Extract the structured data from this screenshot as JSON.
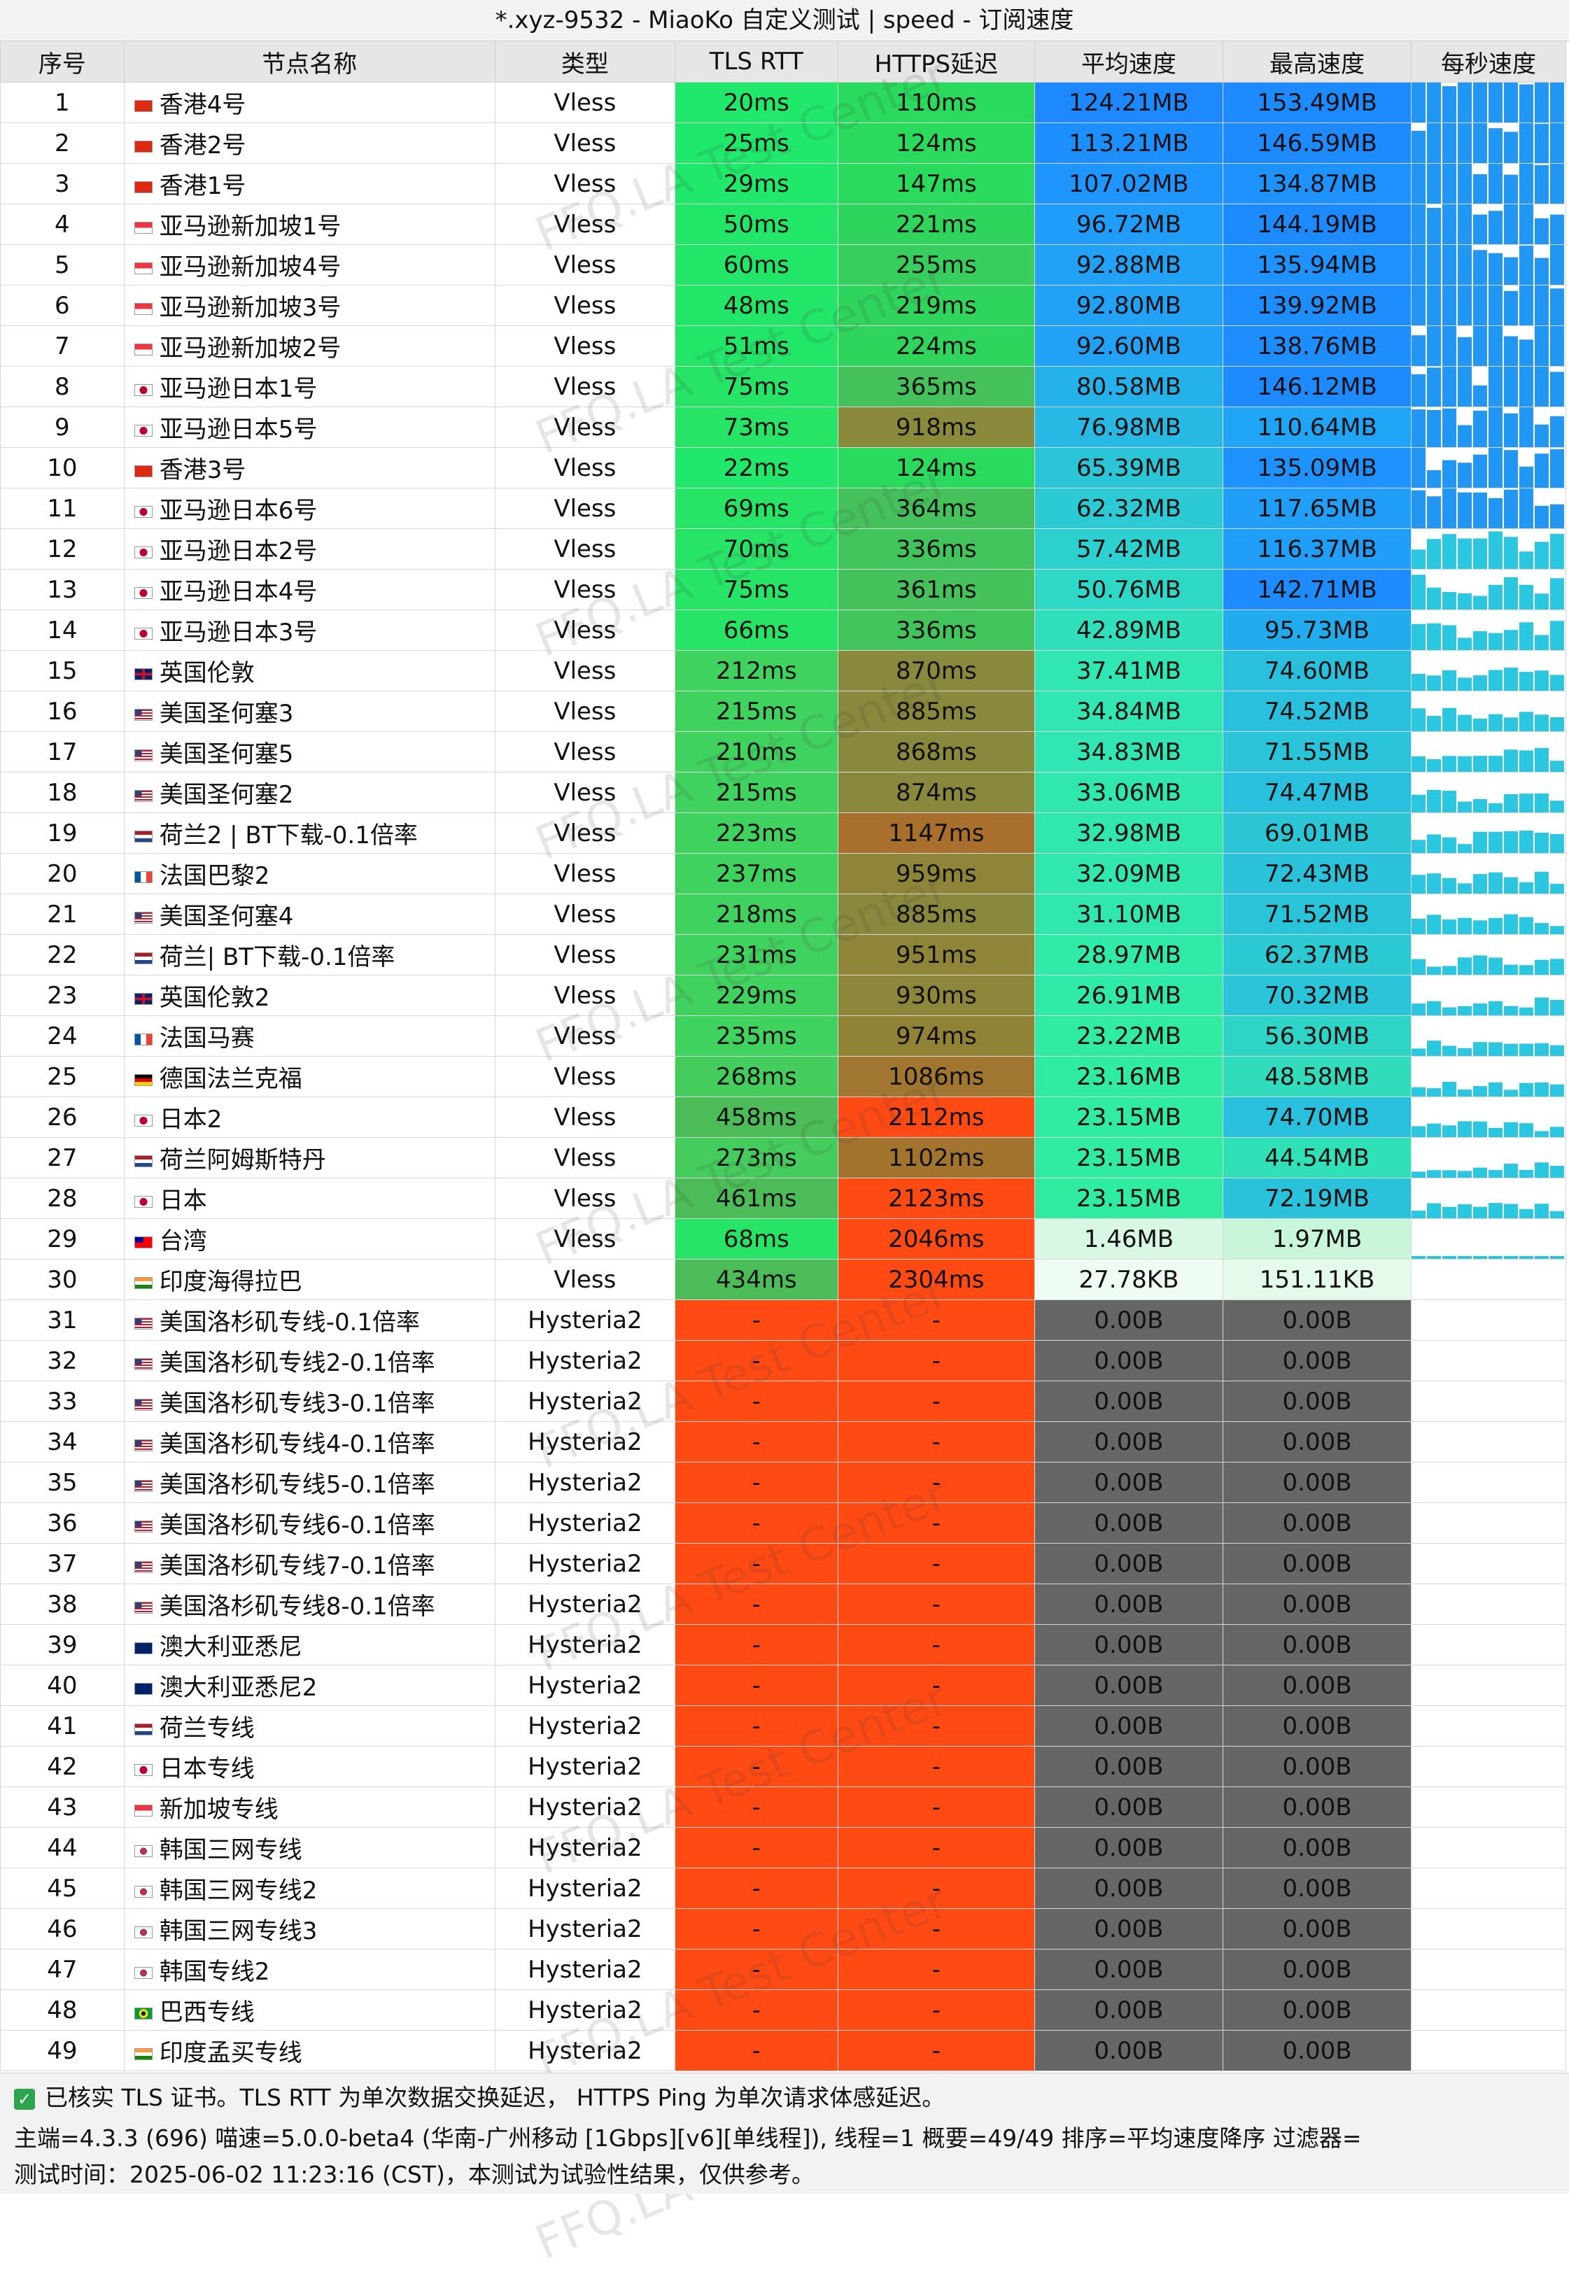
{
  "window": {
    "title": "*.xyz-9532 - MiaoKo 自定义测试 | speed - 订阅速度"
  },
  "colors": {
    "green": "#22e85a",
    "mid_green": "#4cc45c",
    "olive": "#8a8a3a",
    "orange_brown": "#b2641f",
    "red_orange": "#ff4a12",
    "blue": "#1e8fff",
    "teal": "#2ddcd0",
    "pale": "#c8f7dc",
    "gray": "#666666"
  },
  "columns": [
    "序号",
    "节点名称",
    "类型",
    "TLS RTT",
    "HTTPS延迟",
    "平均速度",
    "最高速度",
    "每秒速度"
  ],
  "rows": [
    {
      "idx": "1",
      "flag": "hk",
      "name": "香港4号",
      "type": "Vless",
      "tls": "20ms",
      "https": "110ms",
      "avg": "124.21MB",
      "max": "153.49MB",
      "tc": "#1fe86a",
      "hc": "#2ada5c",
      "ac": "#1e88ff",
      "mc": "#1e8aff"
    },
    {
      "idx": "2",
      "flag": "hk",
      "name": "香港2号",
      "type": "Vless",
      "tls": "25ms",
      "https": "124ms",
      "avg": "113.21MB",
      "max": "146.59MB",
      "tc": "#1fe86a",
      "hc": "#2ada5c",
      "ac": "#1e8fff",
      "mc": "#1e8aff"
    },
    {
      "idx": "3",
      "flag": "hk",
      "name": "香港1号",
      "type": "Vless",
      "tls": "29ms",
      "https": "147ms",
      "avg": "107.02MB",
      "max": "134.87MB",
      "tc": "#1fe86a",
      "hc": "#2ada5c",
      "ac": "#1f95ff",
      "mc": "#1e92ff"
    },
    {
      "idx": "4",
      "flag": "sg",
      "name": "亚马逊新加坡1号",
      "type": "Vless",
      "tls": "50ms",
      "https": "221ms",
      "avg": "96.72MB",
      "max": "144.19MB",
      "tc": "#22e668",
      "hc": "#2ed45c",
      "ac": "#209cfb",
      "mc": "#1e8aff"
    },
    {
      "idx": "5",
      "flag": "sg",
      "name": "亚马逊新加坡4号",
      "type": "Vless",
      "tls": "60ms",
      "https": "255ms",
      "avg": "92.88MB",
      "max": "135.94MB",
      "tc": "#22e668",
      "hc": "#36ce5c",
      "ac": "#21a2f6",
      "mc": "#1e92ff"
    },
    {
      "idx": "6",
      "flag": "sg",
      "name": "亚马逊新加坡3号",
      "type": "Vless",
      "tls": "48ms",
      "https": "219ms",
      "avg": "92.80MB",
      "max": "139.92MB",
      "tc": "#22e668",
      "hc": "#2ed45c",
      "ac": "#21a2f6",
      "mc": "#1e8eff"
    },
    {
      "idx": "7",
      "flag": "sg",
      "name": "亚马逊新加坡2号",
      "type": "Vless",
      "tls": "51ms",
      "https": "224ms",
      "avg": "92.60MB",
      "max": "138.76MB",
      "tc": "#22e668",
      "hc": "#2ed45c",
      "ac": "#21a2f6",
      "mc": "#1e8eff"
    },
    {
      "idx": "8",
      "flag": "jp",
      "name": "亚马逊日本1号",
      "type": "Vless",
      "tls": "75ms",
      "https": "365ms",
      "avg": "80.58MB",
      "max": "146.12MB",
      "tc": "#26e466",
      "hc": "#45c15c",
      "ac": "#25b2ea",
      "mc": "#1e8aff"
    },
    {
      "idx": "9",
      "flag": "jp",
      "name": "亚马逊日本5号",
      "type": "Vless",
      "tls": "73ms",
      "https": "918ms",
      "avg": "76.98MB",
      "max": "110.64MB",
      "tc": "#26e466",
      "hc": "#8a8a3c",
      "ac": "#27b8e4",
      "mc": "#20a4f6"
    },
    {
      "idx": "10",
      "flag": "hk",
      "name": "香港3号",
      "type": "Vless",
      "tls": "22ms",
      "https": "124ms",
      "avg": "65.39MB",
      "max": "135.09MB",
      "tc": "#1fe86a",
      "hc": "#2ada5c",
      "ac": "#2ac6d8",
      "mc": "#1e92ff"
    },
    {
      "idx": "11",
      "flag": "jp",
      "name": "亚马逊日本6号",
      "type": "Vless",
      "tls": "69ms",
      "https": "364ms",
      "avg": "62.32MB",
      "max": "117.65MB",
      "tc": "#26e466",
      "hc": "#45c15c",
      "ac": "#2bcad4",
      "mc": "#209ef8"
    },
    {
      "idx": "12",
      "flag": "jp",
      "name": "亚马逊日本2号",
      "type": "Vless",
      "tls": "70ms",
      "https": "336ms",
      "avg": "57.42MB",
      "max": "116.37MB",
      "tc": "#26e466",
      "hc": "#42c45c",
      "ac": "#2cd0ce",
      "mc": "#209ef8"
    },
    {
      "idx": "13",
      "flag": "jp",
      "name": "亚马逊日本4号",
      "type": "Vless",
      "tls": "75ms",
      "https": "361ms",
      "avg": "50.76MB",
      "max": "142.71MB",
      "tc": "#26e466",
      "hc": "#45c15c",
      "ac": "#2ed8c6",
      "mc": "#1e8cff"
    },
    {
      "idx": "14",
      "flag": "jp",
      "name": "亚马逊日本3号",
      "type": "Vless",
      "tls": "66ms",
      "https": "336ms",
      "avg": "42.89MB",
      "max": "95.73MB",
      "tc": "#26e466",
      "hc": "#42c45c",
      "ac": "#30e0bc",
      "mc": "#22acee"
    },
    {
      "idx": "15",
      "flag": "gb",
      "name": "英国伦敦",
      "type": "Vless",
      "tls": "212ms",
      "https": "870ms",
      "avg": "37.41MB",
      "max": "74.60MB",
      "tc": "#40d25e",
      "hc": "#88893c",
      "ac": "#30e6b2",
      "mc": "#28c0dc"
    },
    {
      "idx": "16",
      "flag": "us",
      "name": "美国圣何塞3",
      "type": "Vless",
      "tls": "215ms",
      "https": "885ms",
      "avg": "34.84MB",
      "max": "74.52MB",
      "tc": "#40d25e",
      "hc": "#88893c",
      "ac": "#30e6b2",
      "mc": "#28c0dc"
    },
    {
      "idx": "17",
      "flag": "us",
      "name": "美国圣何塞5",
      "type": "Vless",
      "tls": "210ms",
      "https": "868ms",
      "avg": "34.83MB",
      "max": "71.55MB",
      "tc": "#40d25e",
      "hc": "#88893c",
      "ac": "#30e6b2",
      "mc": "#2ac4d8"
    },
    {
      "idx": "18",
      "flag": "us",
      "name": "美国圣何塞2",
      "type": "Vless",
      "tls": "215ms",
      "https": "874ms",
      "avg": "33.06MB",
      "max": "74.47MB",
      "tc": "#40d25e",
      "hc": "#88893c",
      "ac": "#30e8ae",
      "mc": "#28c0dc"
    },
    {
      "idx": "19",
      "flag": "nl",
      "name": "荷兰2 | BT下载-0.1倍率",
      "type": "Vless",
      "tls": "223ms",
      "https": "1147ms",
      "avg": "32.98MB",
      "max": "69.01MB",
      "tc": "#40d25e",
      "hc": "#a8702c",
      "ac": "#30e8ae",
      "mc": "#2ac6d6"
    },
    {
      "idx": "20",
      "flag": "fr",
      "name": "法国巴黎2",
      "type": "Vless",
      "tls": "237ms",
      "https": "959ms",
      "avg": "32.09MB",
      "max": "72.43MB",
      "tc": "#40d25e",
      "hc": "#8e8538",
      "ac": "#30e8ae",
      "mc": "#2ac2da"
    },
    {
      "idx": "21",
      "flag": "us",
      "name": "美国圣何塞4",
      "type": "Vless",
      "tls": "218ms",
      "https": "885ms",
      "avg": "31.10MB",
      "max": "71.52MB",
      "tc": "#40d25e",
      "hc": "#88893c",
      "ac": "#30e8ae",
      "mc": "#2ac4d8"
    },
    {
      "idx": "22",
      "flag": "nl",
      "name": "荷兰| BT下载-0.1倍率",
      "type": "Vless",
      "tls": "231ms",
      "https": "951ms",
      "avg": "28.97MB",
      "max": "62.37MB",
      "tc": "#40d25e",
      "hc": "#8e8538",
      "ac": "#30eaa8",
      "mc": "#2bcad2"
    },
    {
      "idx": "23",
      "flag": "gb",
      "name": "英国伦敦2",
      "type": "Vless",
      "tls": "229ms",
      "https": "930ms",
      "avg": "26.91MB",
      "max": "70.32MB",
      "tc": "#40d25e",
      "hc": "#8c873a",
      "ac": "#30eaa8",
      "mc": "#2ac4d8"
    },
    {
      "idx": "24",
      "flag": "fr",
      "name": "法国马赛",
      "type": "Vless",
      "tls": "235ms",
      "https": "974ms",
      "avg": "23.22MB",
      "max": "56.30MB",
      "tc": "#40d25e",
      "hc": "#908336",
      "ac": "#30eca2",
      "mc": "#2ed4c6"
    },
    {
      "idx": "25",
      "flag": "de",
      "name": "德国法兰克福",
      "type": "Vless",
      "tls": "268ms",
      "https": "1086ms",
      "avg": "23.16MB",
      "max": "48.58MB",
      "tc": "#44cc5c",
      "hc": "#a07630",
      "ac": "#30eca2",
      "mc": "#30dcbc"
    },
    {
      "idx": "26",
      "flag": "jp",
      "name": "日本2",
      "type": "Vless",
      "tls": "458ms",
      "https": "2112ms",
      "avg": "23.15MB",
      "max": "74.70MB",
      "tc": "#4cbc58",
      "hc": "#ff4a14",
      "ac": "#30eca2",
      "mc": "#28c0dc"
    },
    {
      "idx": "27",
      "flag": "nl",
      "name": "荷兰阿姆斯特丹",
      "type": "Vless",
      "tls": "273ms",
      "https": "1102ms",
      "avg": "23.15MB",
      "max": "44.54MB",
      "tc": "#44cc5c",
      "hc": "#a2742e",
      "ac": "#30eca2",
      "mc": "#30e0b6"
    },
    {
      "idx": "28",
      "flag": "jp",
      "name": "日本",
      "type": "Vless",
      "tls": "461ms",
      "https": "2123ms",
      "avg": "23.15MB",
      "max": "72.19MB",
      "tc": "#4cbc58",
      "hc": "#ff4a14",
      "ac": "#30eca2",
      "mc": "#2ac2da"
    },
    {
      "idx": "29",
      "flag": "tw",
      "name": "台湾",
      "type": "Vless",
      "tls": "68ms",
      "https": "2046ms",
      "avg": "1.46MB",
      "max": "1.97MB",
      "tc": "#26e466",
      "hc": "#ff4a14",
      "ac": "#d8f8e4",
      "mc": "#c8f6da"
    },
    {
      "idx": "30",
      "flag": "in",
      "name": "印度海得拉巴",
      "type": "Vless",
      "tls": "434ms",
      "https": "2304ms",
      "avg": "27.78KB",
      "max": "151.11KB",
      "tc": "#4cbc58",
      "hc": "#ff4a14",
      "ac": "#eefcf2",
      "mc": "#e4faea"
    },
    {
      "idx": "31",
      "flag": "us",
      "name": "美国洛杉矶专线-0.1倍率",
      "type": "Hysteria2",
      "tls": "-",
      "https": "-",
      "avg": "0.00B",
      "max": "0.00B",
      "tc": "#ff4a14",
      "hc": "#ff4a14",
      "ac": "#666666",
      "mc": "#666666"
    },
    {
      "idx": "32",
      "flag": "us",
      "name": "美国洛杉矶专线2-0.1倍率",
      "type": "Hysteria2",
      "tls": "-",
      "https": "-",
      "avg": "0.00B",
      "max": "0.00B",
      "tc": "#ff4a14",
      "hc": "#ff4a14",
      "ac": "#666666",
      "mc": "#666666"
    },
    {
      "idx": "33",
      "flag": "us",
      "name": "美国洛杉矶专线3-0.1倍率",
      "type": "Hysteria2",
      "tls": "-",
      "https": "-",
      "avg": "0.00B",
      "max": "0.00B",
      "tc": "#ff4a14",
      "hc": "#ff4a14",
      "ac": "#666666",
      "mc": "#666666"
    },
    {
      "idx": "34",
      "flag": "us",
      "name": "美国洛杉矶专线4-0.1倍率",
      "type": "Hysteria2",
      "tls": "-",
      "https": "-",
      "avg": "0.00B",
      "max": "0.00B",
      "tc": "#ff4a14",
      "hc": "#ff4a14",
      "ac": "#666666",
      "mc": "#666666"
    },
    {
      "idx": "35",
      "flag": "us",
      "name": "美国洛杉矶专线5-0.1倍率",
      "type": "Hysteria2",
      "tls": "-",
      "https": "-",
      "avg": "0.00B",
      "max": "0.00B",
      "tc": "#ff4a14",
      "hc": "#ff4a14",
      "ac": "#666666",
      "mc": "#666666"
    },
    {
      "idx": "36",
      "flag": "us",
      "name": "美国洛杉矶专线6-0.1倍率",
      "type": "Hysteria2",
      "tls": "-",
      "https": "-",
      "avg": "0.00B",
      "max": "0.00B",
      "tc": "#ff4a14",
      "hc": "#ff4a14",
      "ac": "#666666",
      "mc": "#666666"
    },
    {
      "idx": "37",
      "flag": "us",
      "name": "美国洛杉矶专线7-0.1倍率",
      "type": "Hysteria2",
      "tls": "-",
      "https": "-",
      "avg": "0.00B",
      "max": "0.00B",
      "tc": "#ff4a14",
      "hc": "#ff4a14",
      "ac": "#666666",
      "mc": "#666666"
    },
    {
      "idx": "38",
      "flag": "us",
      "name": "美国洛杉矶专线8-0.1倍率",
      "type": "Hysteria2",
      "tls": "-",
      "https": "-",
      "avg": "0.00B",
      "max": "0.00B",
      "tc": "#ff4a14",
      "hc": "#ff4a14",
      "ac": "#666666",
      "mc": "#666666"
    },
    {
      "idx": "39",
      "flag": "au",
      "name": "澳大利亚悉尼",
      "type": "Hysteria2",
      "tls": "-",
      "https": "-",
      "avg": "0.00B",
      "max": "0.00B",
      "tc": "#ff4a14",
      "hc": "#ff4a14",
      "ac": "#666666",
      "mc": "#666666"
    },
    {
      "idx": "40",
      "flag": "au",
      "name": "澳大利亚悉尼2",
      "type": "Hysteria2",
      "tls": "-",
      "https": "-",
      "avg": "0.00B",
      "max": "0.00B",
      "tc": "#ff4a14",
      "hc": "#ff4a14",
      "ac": "#666666",
      "mc": "#666666"
    },
    {
      "idx": "41",
      "flag": "nl",
      "name": "荷兰专线",
      "type": "Hysteria2",
      "tls": "-",
      "https": "-",
      "avg": "0.00B",
      "max": "0.00B",
      "tc": "#ff4a14",
      "hc": "#ff4a14",
      "ac": "#666666",
      "mc": "#666666"
    },
    {
      "idx": "42",
      "flag": "jp",
      "name": "日本专线",
      "type": "Hysteria2",
      "tls": "-",
      "https": "-",
      "avg": "0.00B",
      "max": "0.00B",
      "tc": "#ff4a14",
      "hc": "#ff4a14",
      "ac": "#666666",
      "mc": "#666666"
    },
    {
      "idx": "43",
      "flag": "sg",
      "name": "新加坡专线",
      "type": "Hysteria2",
      "tls": "-",
      "https": "-",
      "avg": "0.00B",
      "max": "0.00B",
      "tc": "#ff4a14",
      "hc": "#ff4a14",
      "ac": "#666666",
      "mc": "#666666"
    },
    {
      "idx": "44",
      "flag": "kr",
      "name": "韩国三网专线",
      "type": "Hysteria2",
      "tls": "-",
      "https": "-",
      "avg": "0.00B",
      "max": "0.00B",
      "tc": "#ff4a14",
      "hc": "#ff4a14",
      "ac": "#666666",
      "mc": "#666666"
    },
    {
      "idx": "45",
      "flag": "kr",
      "name": "韩国三网专线2",
      "type": "Hysteria2",
      "tls": "-",
      "https": "-",
      "avg": "0.00B",
      "max": "0.00B",
      "tc": "#ff4a14",
      "hc": "#ff4a14",
      "ac": "#666666",
      "mc": "#666666"
    },
    {
      "idx": "46",
      "flag": "kr",
      "name": "韩国三网专线3",
      "type": "Hysteria2",
      "tls": "-",
      "https": "-",
      "avg": "0.00B",
      "max": "0.00B",
      "tc": "#ff4a14",
      "hc": "#ff4a14",
      "ac": "#666666",
      "mc": "#666666"
    },
    {
      "idx": "47",
      "flag": "kr",
      "name": "韩国专线2",
      "type": "Hysteria2",
      "tls": "-",
      "https": "-",
      "avg": "0.00B",
      "max": "0.00B",
      "tc": "#ff4a14",
      "hc": "#ff4a14",
      "ac": "#666666",
      "mc": "#666666"
    },
    {
      "idx": "48",
      "flag": "br",
      "name": "巴西专线",
      "type": "Hysteria2",
      "tls": "-",
      "https": "-",
      "avg": "0.00B",
      "max": "0.00B",
      "tc": "#ff4a14",
      "hc": "#ff4a14",
      "ac": "#666666",
      "mc": "#666666"
    },
    {
      "idx": "49",
      "flag": "in",
      "name": "印度孟买专线",
      "type": "Hysteria2",
      "tls": "-",
      "https": "-",
      "avg": "0.00B",
      "max": "0.00B",
      "tc": "#ff4a14",
      "hc": "#ff4a14",
      "ac": "#666666",
      "mc": "#666666"
    }
  ],
  "watermark": "FFQ.LA Test Center",
  "footer": {
    "check_icon": "check-icon",
    "line1": "已核实 TLS 证书。TLS RTT 为单次数据交换延迟， HTTPS Ping 为单次请求体感延迟。",
    "line2": "主端=4.3.3 (696) 喵速=5.0.0-beta4 (华南-广州移动 [1Gbps][v6][单线程]), 线程=1 概要=49/49 排序=平均速度降序 过滤器=",
    "line3": "测试时间：2025-06-02 11:23:16 (CST)，本测试为试验性结果，仅供参考。"
  }
}
